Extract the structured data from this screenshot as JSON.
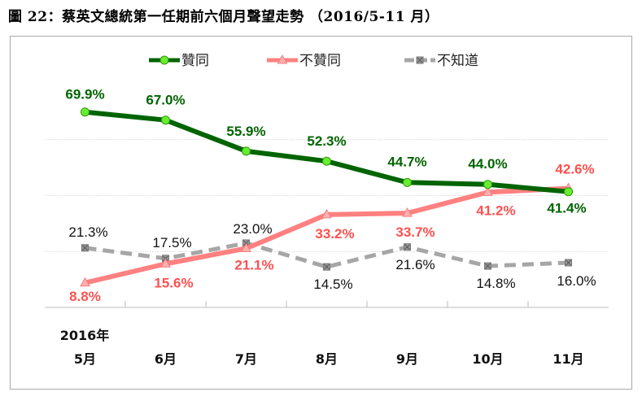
{
  "title": "圖 22：蔡英文總統第一任期前六個月聲望走勢 （2016/5-11 月）",
  "chart_data": {
    "type": "line",
    "title": "圖 22：蔡英文總統第一任期前六個月聲望走勢 （2016/5-11 月）",
    "year_label": "2016年",
    "categories": [
      "5月",
      "6月",
      "7月",
      "8月",
      "9月",
      "10月",
      "11月"
    ],
    "ylim": [
      0,
      80
    ],
    "grid": true,
    "legend_position": "top-center",
    "series": [
      {
        "name": "贊同",
        "values": [
          69.9,
          67.0,
          55.9,
          52.3,
          44.7,
          44.0,
          41.4
        ],
        "labels": [
          "69.9%",
          "67.0%",
          "55.9%",
          "52.3%",
          "44.7%",
          "44.0%",
          "41.4%"
        ],
        "color": "#006400",
        "marker_color": "#66ee33",
        "style": "solid"
      },
      {
        "name": "不贊同",
        "values": [
          8.8,
          15.6,
          21.1,
          33.2,
          33.7,
          41.2,
          42.6
        ],
        "labels": [
          "8.8%",
          "15.6%",
          "21.1%",
          "33.2%",
          "33.7%",
          "41.2%",
          "42.6%"
        ],
        "color": "#ff8080",
        "label_color": "#ff5050",
        "marker_color": "#ffb0b0",
        "style": "solid"
      },
      {
        "name": "不知道",
        "values": [
          21.3,
          17.5,
          23.0,
          14.5,
          21.6,
          14.8,
          16.0
        ],
        "labels": [
          "21.3%",
          "17.5%",
          "23.0%",
          "14.5%",
          "21.6%",
          "14.8%",
          "16.0%"
        ],
        "color": "#a6a6a6",
        "label_color": "#111111",
        "marker_color": "#999999",
        "style": "dashed"
      }
    ]
  }
}
